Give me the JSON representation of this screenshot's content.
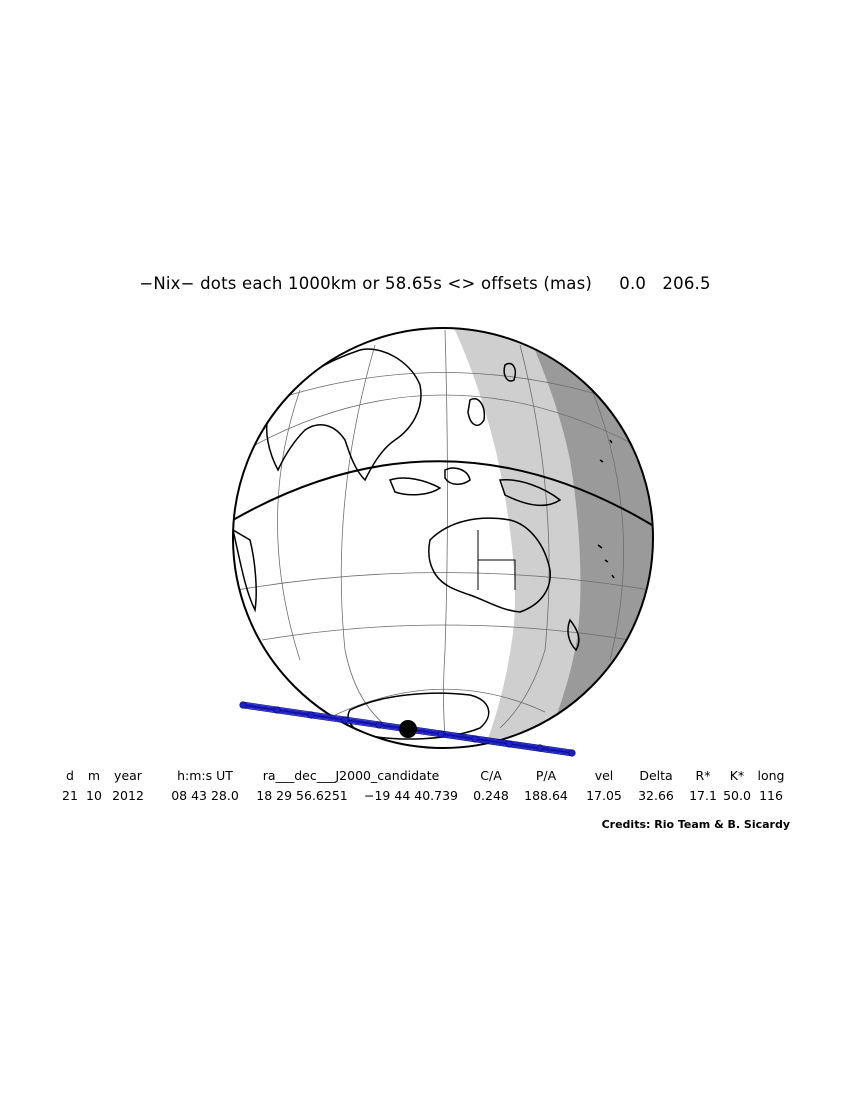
{
  "title": "−Nix− dots each 1000km or 58.65s <> offsets (mas)     0.0   206.5",
  "map": {
    "projection": "orthographic",
    "shading": [
      "day",
      "twilight",
      "night"
    ],
    "colors": {
      "twilight": "#cfcfcf",
      "night": "#9a9a9a",
      "track": "#1f22c8",
      "graticule": "#6e6e6e",
      "body": "#000000"
    }
  },
  "header": [
    "d",
    "m",
    "year",
    "h:m:s UT",
    "ra___dec___J2000_candidate",
    "C/A",
    "P/A",
    "vel",
    "Delta",
    "R*",
    "K*",
    "long"
  ],
  "values": [
    "21",
    "10",
    "2012",
    "08 43 28.0",
    "18 29 56.6251",
    "−19 44 40.739",
    "0.248",
    "188.64",
    "17.05",
    "32.66",
    "17.1",
    "50.0",
    "116"
  ],
  "credits": "Credits: Rio Team & B. Sicardy"
}
